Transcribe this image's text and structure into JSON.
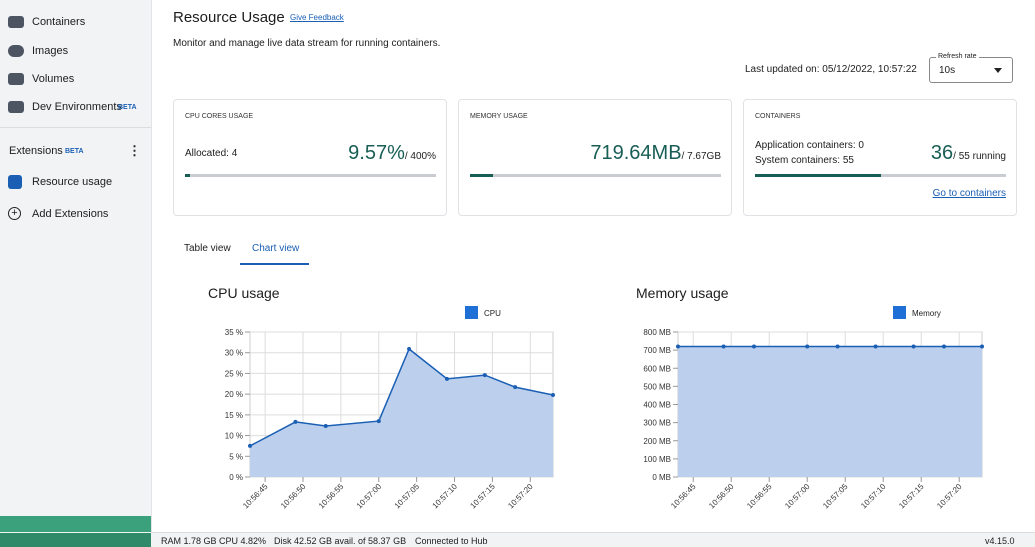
{
  "sidebar": {
    "items": [
      "Containers",
      "Images",
      "Volumes",
      "Dev Environments"
    ],
    "dev_beta": "BETA",
    "extensions": "Extensions",
    "extensions_beta": "BETA",
    "resource_usage": "Resource usage",
    "add_extensions": "Add Extensions"
  },
  "header": {
    "title": "Resource Usage",
    "feedback": "Give Feedback",
    "description": "Monitor and manage live data stream for running containers.",
    "last_updated": "Last updated on: 05/12/2022, 10:57:22",
    "refresh_label": "Refresh rate",
    "refresh_value": "10s"
  },
  "cards": [
    {
      "label": "CPU CORES USAGE",
      "line1": "Allocated: 4",
      "value": "9.57%",
      "total": "/ 400%",
      "progress": 2
    },
    {
      "label": "MEMORY USAGE",
      "value": "719.64MB",
      "total": "/ 7.67GB",
      "progress": 9
    },
    {
      "label": "CONTAINERS",
      "line1": "Application containers: 0",
      "line2": "System containers: 55",
      "value": "36",
      "total": "/ 55 running",
      "progress": 50,
      "link": "Go to containers"
    }
  ],
  "tabs": [
    "Table view",
    "Chart view"
  ],
  "chart_data": [
    {
      "type": "line",
      "title": "CPU usage",
      "x": [
        "10:56:43",
        "10:56:49",
        "10:56:53",
        "10:57:00",
        "10:57:04",
        "10:57:09",
        "10:57:14",
        "10:57:18",
        "10:57:23"
      ],
      "series": [
        {
          "name": "CPU",
          "color": "#1a5fb4",
          "fill": "#bcd0ee",
          "values": [
            7.5,
            13.3,
            12.3,
            13.5,
            30.9,
            23.7,
            24.6,
            21.7,
            19.8
          ]
        }
      ],
      "xlim": [
        "10:56:43",
        "10:57:23"
      ],
      "xticks": [
        "10:56:45",
        "10:56:50",
        "10:56:55",
        "10:57:00",
        "10:57:05",
        "10:57:10",
        "10:57:15",
        "10:57:20"
      ],
      "ylim": [
        0,
        35
      ],
      "yticks": [
        {
          "value": 0,
          "label": "0 %"
        },
        {
          "value": 5,
          "label": "5 %"
        },
        {
          "value": 10,
          "label": "10 %"
        },
        {
          "value": 15,
          "label": "15 %"
        },
        {
          "value": 20,
          "label": "20 %"
        },
        {
          "value": 25,
          "label": "25 %"
        },
        {
          "value": 30,
          "label": "30 %"
        },
        {
          "value": 35,
          "label": "35 %"
        }
      ],
      "grid": true,
      "legend": "top"
    },
    {
      "type": "line",
      "title": "Memory usage",
      "x": [
        "10:56:43",
        "10:56:49",
        "10:56:53",
        "10:57:00",
        "10:57:04",
        "10:57:09",
        "10:57:14",
        "10:57:18",
        "10:57:23"
      ],
      "series": [
        {
          "name": "Memory",
          "color": "#1a5fb4",
          "fill": "#bcd0ee",
          "values": [
            720,
            720,
            720,
            720,
            720,
            720,
            720,
            720,
            720
          ]
        }
      ],
      "xlim": [
        "10:56:43",
        "10:57:23"
      ],
      "xticks": [
        "10:56:45",
        "10:56:50",
        "10:56:55",
        "10:57:00",
        "10:57:05",
        "10:57:10",
        "10:57:15",
        "10:57:20"
      ],
      "ylim": [
        0,
        800
      ],
      "yticks": [
        {
          "value": 0,
          "label": "0 MB"
        },
        {
          "value": 100,
          "label": "100 MB"
        },
        {
          "value": 200,
          "label": "200 MB"
        },
        {
          "value": 300,
          "label": "300 MB"
        },
        {
          "value": 400,
          "label": "400 MB"
        },
        {
          "value": 500,
          "label": "500 MB"
        },
        {
          "value": 600,
          "label": "600 MB"
        },
        {
          "value": 700,
          "label": "700 MB"
        },
        {
          "value": 800,
          "label": "800 MB"
        }
      ],
      "grid": true,
      "legend": "top"
    }
  ],
  "status": {
    "ram": "RAM 1.78 GB",
    "cpu": "CPU 4.82%",
    "disk": "Disk 42.52 GB avail. of 58.37 GB",
    "hub": "Connected to Hub",
    "version": "v4.15.0"
  }
}
